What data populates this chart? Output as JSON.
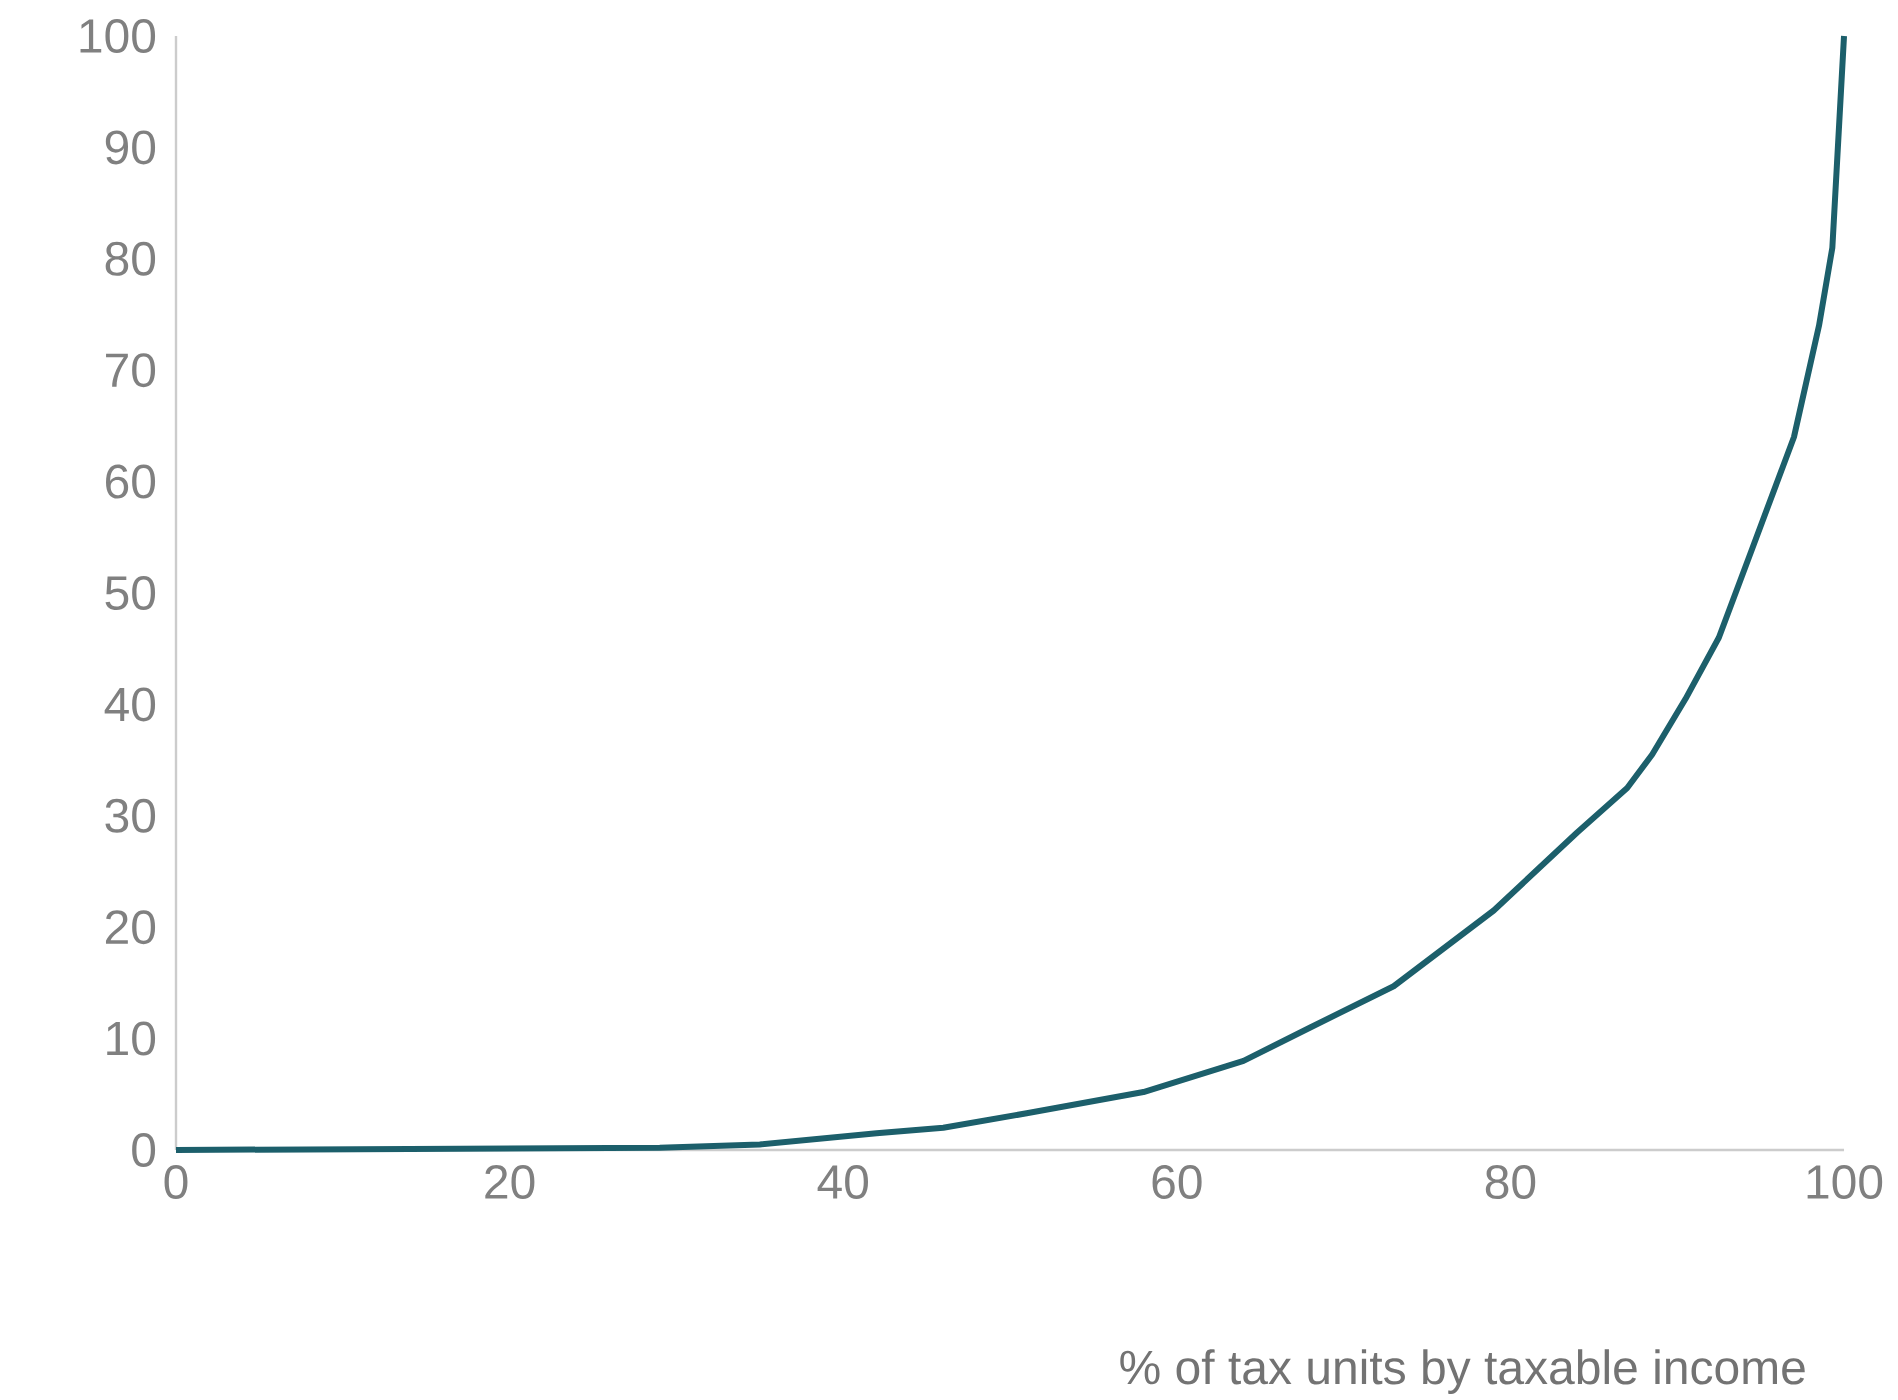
{
  "chart_data": {
    "type": "line",
    "xlabel": "% of tax units by taxable income",
    "x": [
      0,
      14,
      29,
      35,
      42,
      46,
      51,
      58,
      64,
      68,
      73,
      79,
      84,
      87,
      88.5,
      90.5,
      92.5,
      94.5,
      97,
      98.5,
      99.3,
      100
    ],
    "values": [
      0,
      0.1,
      0.2,
      0.5,
      1.5,
      2,
      3.3,
      5.2,
      8,
      11,
      14.7,
      21.5,
      28.5,
      32.5,
      35.5,
      40.5,
      46,
      54,
      64,
      74,
      81,
      100
    ],
    "color": "#1c5f6b",
    "xlim": [
      0,
      100
    ],
    "ylim": [
      0,
      100
    ],
    "xticks": [
      0,
      20,
      40,
      60,
      80,
      100
    ],
    "yticks": [
      0,
      10,
      20,
      30,
      40,
      50,
      60,
      70,
      80,
      90,
      100
    ]
  }
}
